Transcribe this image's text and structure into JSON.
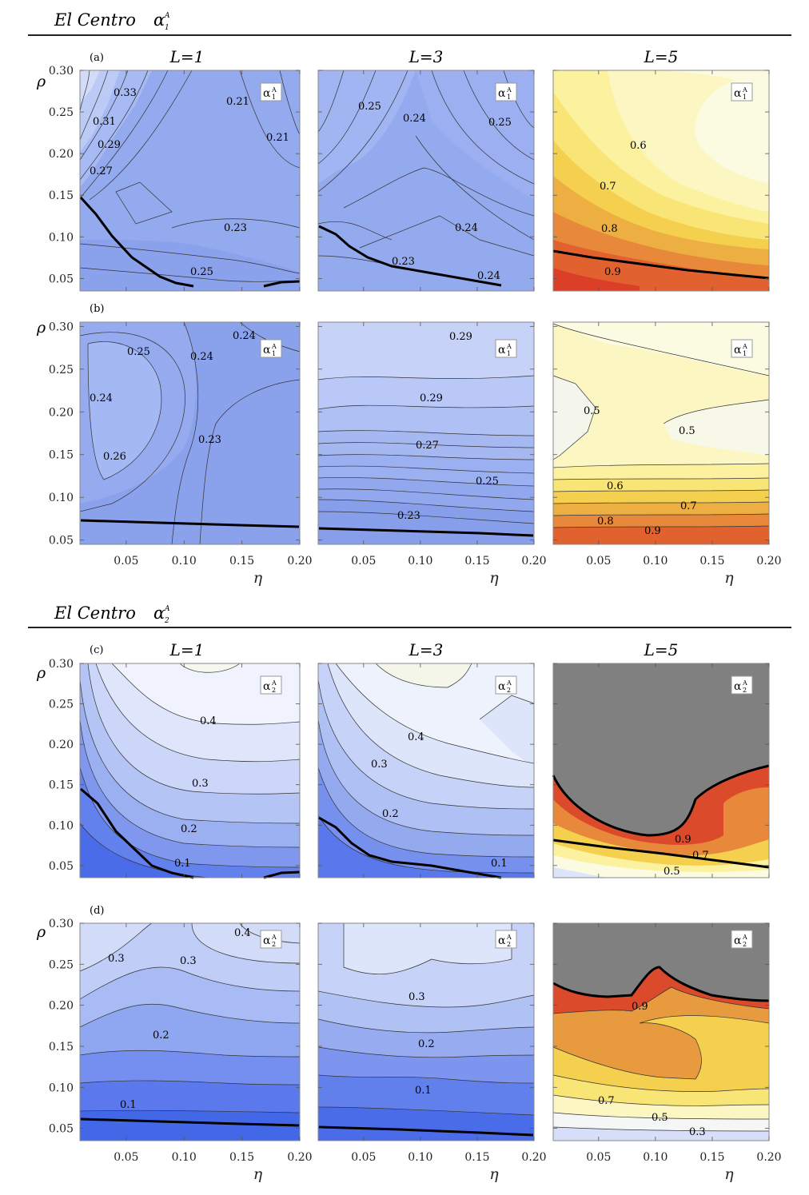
{
  "colors": {
    "blue": [
      "#dde5fa",
      "#c2d0f8",
      "#a7baf4",
      "#8ea5ef",
      "#758ff0",
      "#5b79ec",
      "#4268e8"
    ],
    "warm": [
      "#fbfbe2",
      "#fbf6c2",
      "#fbf19e",
      "#f8e576",
      "#f4d04e",
      "#eeaf42",
      "#e8883a",
      "#e2622f",
      "#db3f27"
    ],
    "gray": "#808080",
    "line": "#000000"
  },
  "sections": [
    {
      "title": "El Centro",
      "symbol": "α",
      "sub": "1",
      "sup": "A"
    },
    {
      "title": "El Centro",
      "symbol": "α",
      "sub": "2",
      "sup": "A"
    }
  ],
  "columns": [
    "L=1",
    "L=3",
    "L=5"
  ],
  "row_labels": [
    "(a)",
    "(b)",
    "(c)",
    "(d)"
  ],
  "x_ticks": [
    "0.05",
    "0.10",
    "0.15",
    "0.20"
  ],
  "y_ticks": [
    "0.05",
    "0.10",
    "0.15",
    "0.20",
    "0.25",
    "0.30"
  ],
  "xlabel": "η",
  "ylabel": "ρ",
  "chart_data": [
    {
      "type": "heatmap",
      "title": "(a) L=1",
      "xlabel": "η",
      "ylabel": "ρ",
      "xlim": [
        0.01,
        0.2
      ],
      "ylim": [
        0.035,
        0.3
      ],
      "legend": "α1A",
      "contour_labels": [
        "0.33",
        "0.31",
        "0.29",
        "0.27",
        "0.21",
        "0.21",
        "0.23",
        "0.25"
      ],
      "boundary": [
        [
          0.01,
          0.145
        ],
        [
          0.03,
          0.12
        ],
        [
          0.05,
          0.09
        ],
        [
          0.07,
          0.062
        ],
        [
          0.09,
          0.044
        ],
        [
          0.1,
          0.04
        ],
        [
          0.109,
          0.038
        ]
      ]
    },
    {
      "type": "heatmap",
      "title": "(a) L=3",
      "xlabel": "η",
      "ylabel": "ρ",
      "xlim": [
        0.01,
        0.2
      ],
      "ylim": [
        0.035,
        0.3
      ],
      "legend": "α1A",
      "contour_labels": [
        "0.25",
        "0.24",
        "0.25",
        "0.24",
        "0.23",
        "0.24"
      ],
      "boundary": [
        [
          0.01,
          0.11
        ],
        [
          0.03,
          0.095
        ],
        [
          0.05,
          0.073
        ],
        [
          0.07,
          0.064
        ],
        [
          0.1,
          0.057
        ],
        [
          0.13,
          0.05
        ],
        [
          0.175,
          0.04
        ]
      ]
    },
    {
      "type": "heatmap",
      "title": "(a) L=5",
      "xlabel": "η",
      "ylabel": "ρ",
      "xlim": [
        0.01,
        0.2
      ],
      "ylim": [
        0.035,
        0.3
      ],
      "legend": "α1A",
      "contour_labels": [
        "0.6",
        "0.7",
        "0.8",
        "0.9"
      ],
      "boundary": [
        [
          0.01,
          0.083
        ],
        [
          0.05,
          0.074
        ],
        [
          0.1,
          0.063
        ],
        [
          0.15,
          0.053
        ],
        [
          0.2,
          0.048
        ]
      ]
    },
    {
      "type": "heatmap",
      "title": "(b) L=1",
      "xlabel": "η",
      "ylabel": "ρ",
      "xlim": [
        0.01,
        0.2
      ],
      "ylim": [
        0.045,
        0.305
      ],
      "legend": "α1A",
      "contour_labels": [
        "0.24",
        "0.25",
        "0.24",
        "0.24",
        "0.23",
        "0.26"
      ],
      "boundary": [
        [
          0.01,
          0.073
        ],
        [
          0.1,
          0.07
        ],
        [
          0.2,
          0.067
        ]
      ]
    },
    {
      "type": "heatmap",
      "title": "(b) L=3",
      "xlabel": "η",
      "ylabel": "ρ",
      "xlim": [
        0.01,
        0.2
      ],
      "ylim": [
        0.045,
        0.305
      ],
      "legend": "α1A",
      "contour_labels": [
        "0.29",
        "0.29",
        "0.27",
        "0.25",
        "0.23"
      ],
      "boundary": [
        [
          0.01,
          0.063
        ],
        [
          0.1,
          0.059
        ],
        [
          0.2,
          0.054
        ]
      ]
    },
    {
      "type": "heatmap",
      "title": "(b) L=5",
      "xlabel": "η",
      "ylabel": "ρ",
      "xlim": [
        0.01,
        0.2
      ],
      "ylim": [
        0.045,
        0.305
      ],
      "legend": "α1A",
      "contour_labels": [
        "0.5",
        "0.5",
        "0.6",
        "0.7",
        "0.8",
        "0.9"
      ],
      "boundary": []
    },
    {
      "type": "heatmap",
      "title": "(c) L=1",
      "xlabel": "η",
      "ylabel": "ρ",
      "xlim": [
        0.01,
        0.2
      ],
      "ylim": [
        0.035,
        0.3
      ],
      "legend": "α2A",
      "contour_labels": [
        "0.4",
        "0.3",
        "0.2",
        "0.1"
      ],
      "boundary": [
        [
          0.01,
          0.14
        ],
        [
          0.03,
          0.12
        ],
        [
          0.05,
          0.09
        ],
        [
          0.07,
          0.065
        ],
        [
          0.085,
          0.046
        ],
        [
          0.1,
          0.04
        ],
        [
          0.11,
          0.036
        ]
      ]
    },
    {
      "type": "heatmap",
      "title": "(c) L=3",
      "xlabel": "η",
      "ylabel": "ρ",
      "xlim": [
        0.01,
        0.2
      ],
      "ylim": [
        0.035,
        0.3
      ],
      "legend": "α2A",
      "contour_labels": [
        "0.4",
        "0.3",
        "0.2",
        "0.1"
      ],
      "boundary": [
        [
          0.01,
          0.108
        ],
        [
          0.03,
          0.093
        ],
        [
          0.05,
          0.07
        ],
        [
          0.07,
          0.058
        ],
        [
          0.1,
          0.052
        ],
        [
          0.14,
          0.046
        ],
        [
          0.175,
          0.038
        ]
      ]
    },
    {
      "type": "heatmap",
      "title": "(c) L=5",
      "xlabel": "η",
      "ylabel": "ρ",
      "xlim": [
        0.01,
        0.2
      ],
      "ylim": [
        0.035,
        0.3
      ],
      "legend": "α2A",
      "contour_labels": [
        "0.9",
        "0.7",
        "0.5"
      ],
      "boundary": [
        [
          0.01,
          0.076
        ],
        [
          0.05,
          0.068
        ],
        [
          0.1,
          0.06
        ],
        [
          0.15,
          0.053
        ],
        [
          0.2,
          0.046
        ]
      ]
    },
    {
      "type": "heatmap",
      "title": "(d) L=1",
      "xlabel": "η",
      "ylabel": "ρ",
      "xlim": [
        0.01,
        0.2
      ],
      "ylim": [
        0.035,
        0.3
      ],
      "legend": "α2A",
      "contour_labels": [
        "0.4",
        "0.3",
        "0.3",
        "0.2",
        "0.1"
      ],
      "boundary": [
        [
          0.01,
          0.058
        ],
        [
          0.1,
          0.055
        ],
        [
          0.2,
          0.052
        ]
      ]
    },
    {
      "type": "heatmap",
      "title": "(d) L=3",
      "xlabel": "η",
      "ylabel": "ρ",
      "xlim": [
        0.01,
        0.2
      ],
      "ylim": [
        0.035,
        0.3
      ],
      "legend": "α2A",
      "contour_labels": [
        "0.3",
        "0.2",
        "0.1"
      ],
      "boundary": [
        [
          0.01,
          0.049
        ],
        [
          0.1,
          0.044
        ],
        [
          0.2,
          0.038
        ]
      ]
    },
    {
      "type": "heatmap",
      "title": "(d) L=5",
      "xlabel": "η",
      "ylabel": "ρ",
      "xlim": [
        0.01,
        0.2
      ],
      "ylim": [
        0.035,
        0.3
      ],
      "legend": "α2A",
      "contour_labels": [
        "0.9",
        "0.7",
        "0.5",
        "0.3"
      ],
      "boundary": [
        [
          0.01,
          0.195
        ],
        [
          0.04,
          0.18
        ],
        [
          0.07,
          0.18
        ],
        [
          0.1,
          0.22
        ],
        [
          0.12,
          0.21
        ],
        [
          0.15,
          0.193
        ],
        [
          0.2,
          0.185
        ]
      ]
    }
  ]
}
